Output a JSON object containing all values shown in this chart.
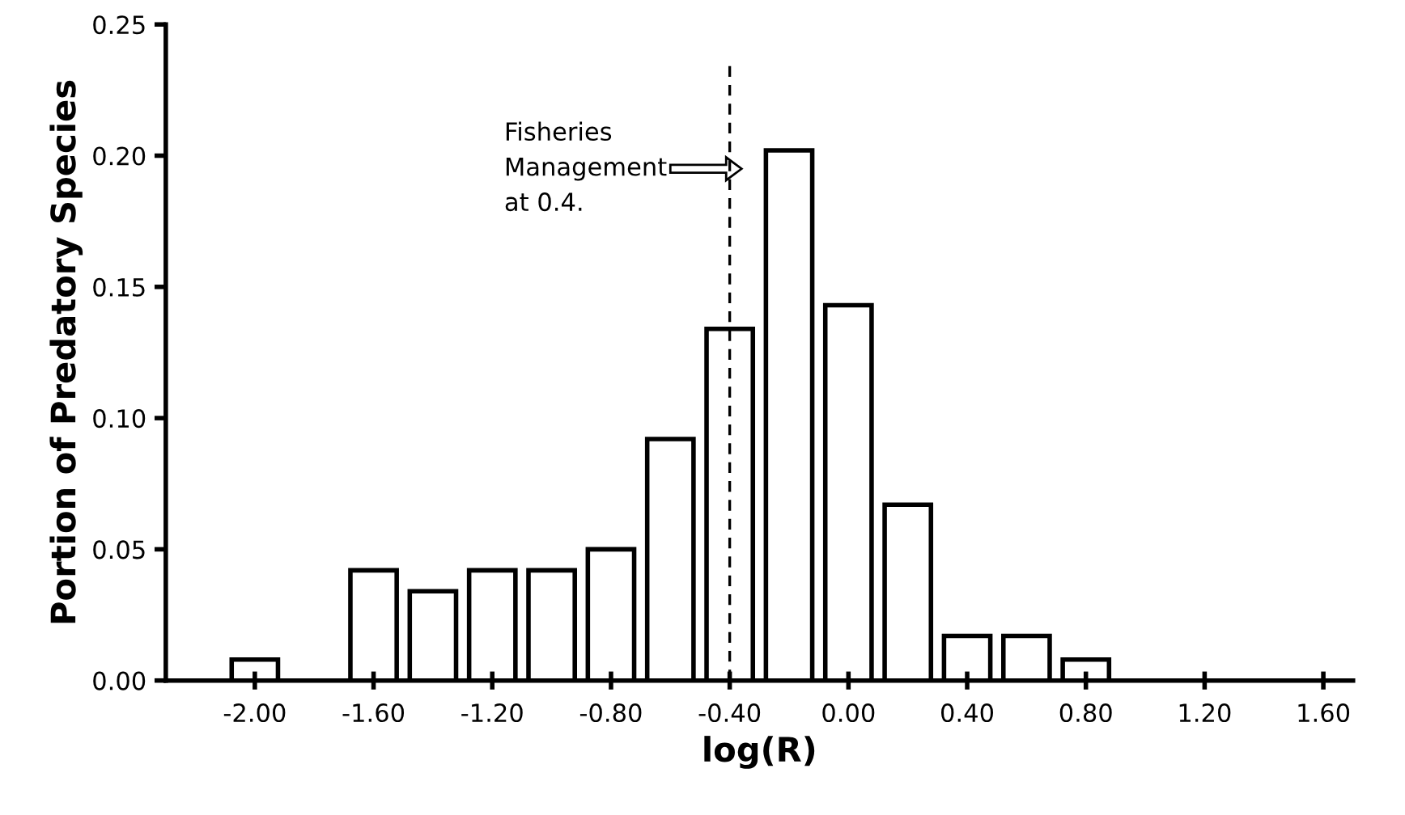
{
  "chart_data": {
    "type": "histogram",
    "xlabel": "log(R)",
    "ylabel": "Portion of Predatory Species",
    "bins": [
      -2.3,
      -2.1,
      -1.9,
      -1.7,
      -1.5,
      -1.3,
      -1.1,
      -0.9,
      -0.7,
      -0.5,
      -0.3,
      -0.1,
      0.1,
      0.3,
      0.5,
      0.7,
      0.9,
      1.1,
      1.3,
      1.5,
      1.7
    ],
    "values": [
      0,
      0.008,
      0,
      0.042,
      0.034,
      0.042,
      0.042,
      0.05,
      0.092,
      0.134,
      0.202,
      0.143,
      0.067,
      0.017,
      0.017,
      0.008,
      0,
      0,
      0,
      0
    ],
    "color": "#ffffff",
    "xlim": [
      -2.3,
      1.7
    ],
    "xticks": [
      {
        "value": -2.0,
        "label": "-2.00"
      },
      {
        "value": -1.6,
        "label": "-1.60"
      },
      {
        "value": -1.2,
        "label": "-1.20"
      },
      {
        "value": -0.8,
        "label": "-0.80"
      },
      {
        "value": -0.4,
        "label": "-0.40"
      },
      {
        "value": 0.0,
        "label": "0.00"
      },
      {
        "value": 0.4,
        "label": "0.40"
      },
      {
        "value": 0.8,
        "label": "0.80"
      },
      {
        "value": 1.2,
        "label": "1.20"
      },
      {
        "value": 1.6,
        "label": "1.60"
      }
    ],
    "ylim": [
      0,
      0.25
    ],
    "yticks": [
      {
        "value": 0,
        "label": "0.00"
      },
      {
        "value": 0.05,
        "label": "0.05"
      },
      {
        "value": 0.1,
        "label": "0.10"
      },
      {
        "value": 0.15,
        "label": "0.15"
      },
      {
        "value": 0.2,
        "label": "0.20"
      },
      {
        "value": 0.25,
        "label": "0.25"
      }
    ],
    "grid": false,
    "ref_lines": [
      {
        "axis": "x",
        "value": -0.4,
        "label": null,
        "color": "#000000",
        "line_style": "dashed"
      }
    ],
    "annotations": [
      "Fisheries\nManagement\nat 0.4."
    ]
  }
}
